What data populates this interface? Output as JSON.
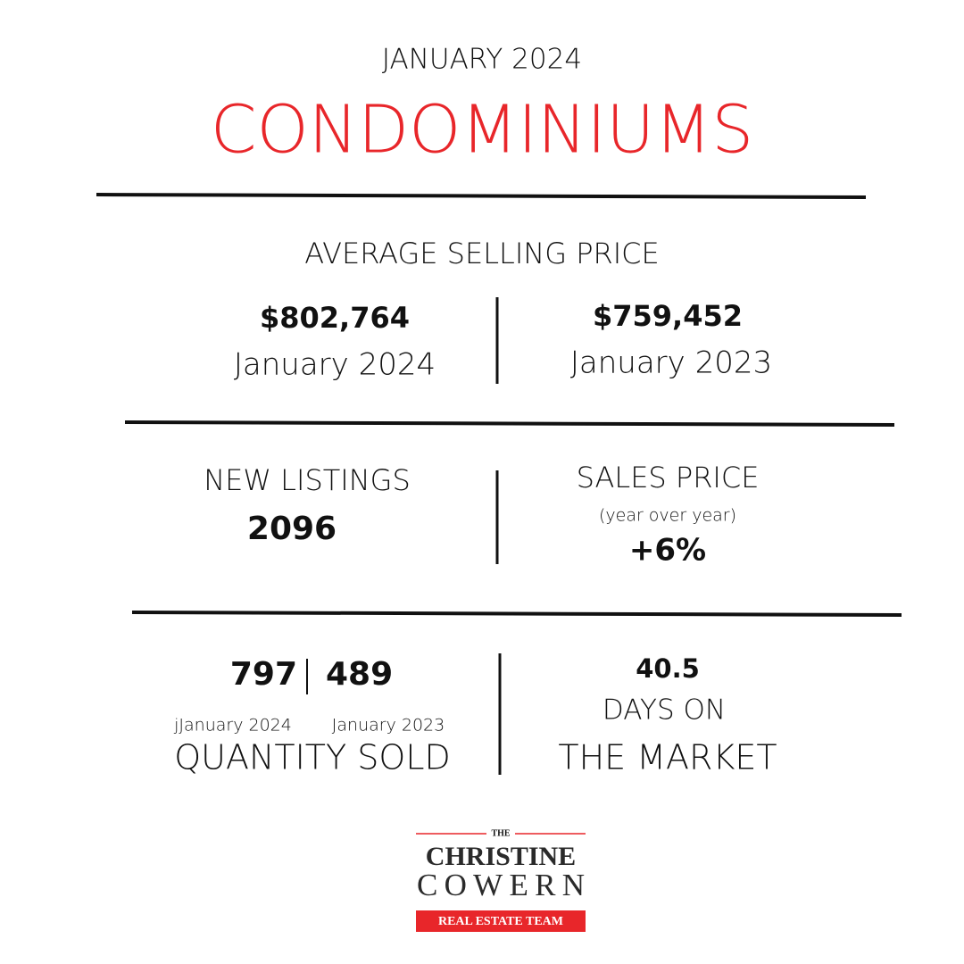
{
  "header": {
    "date": "JANUARY 2024",
    "title": "CONDOMINIUMS"
  },
  "average_selling_price": {
    "label": "AVERAGE SELLING PRICE",
    "current": {
      "value": "$802,764",
      "period": "January 2024"
    },
    "previous": {
      "value": "$759,452",
      "period": "January 2023"
    }
  },
  "new_listings": {
    "label": "NEW LISTINGS",
    "value": "2096"
  },
  "sales_price": {
    "label": "SALES PRICE",
    "note": "(year over year)",
    "value": "+6%"
  },
  "quantity_sold": {
    "current": "797",
    "previous": "489",
    "current_period": "jJanuary 2024",
    "previous_period": "January 2023",
    "label": "QUANTITY SOLD"
  },
  "days_on_market": {
    "value": "40.5",
    "label_line1": "DAYS ON",
    "label_line2": "THE MARKET"
  },
  "logo": {
    "the": "THE",
    "name1": "CHRISTINE",
    "name2": "COWERN",
    "tagline": "REAL ESTATE TEAM"
  }
}
